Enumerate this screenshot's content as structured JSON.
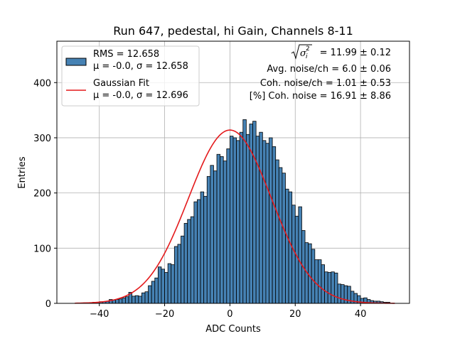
{
  "chart_data": {
    "type": "histogram",
    "title": "Run 647, pedestal, hi Gain, Channels 8-11",
    "xlabel": "ADC Counts",
    "ylabel": "Entries",
    "xlim": [
      -53,
      55
    ],
    "ylim": [
      0,
      475
    ],
    "x_ticks": [
      -40,
      -20,
      0,
      20,
      40
    ],
    "x_tick_labels": [
      "−40",
      "−20",
      "0",
      "20",
      "40"
    ],
    "y_ticks": [
      0,
      100,
      200,
      300,
      400
    ],
    "y_tick_labels": [
      "0",
      "100",
      "200",
      "300",
      "400"
    ],
    "grid": true,
    "bar_color": "#4682b4",
    "bar_edge_color": "#000000",
    "fit_color": "#e41a1c",
    "bins": {
      "start": -45,
      "width": 1,
      "counts": [
        1,
        1,
        1,
        2,
        2,
        3,
        3,
        4,
        7,
        6,
        7,
        8,
        10,
        12,
        20,
        13,
        14,
        13,
        19,
        21,
        32,
        40,
        46,
        66,
        62,
        56,
        72,
        70,
        103,
        107,
        122,
        145,
        152,
        157,
        184,
        188,
        202,
        194,
        230,
        250,
        240,
        270,
        266,
        258,
        280,
        303,
        300,
        295,
        310,
        333,
        306,
        325,
        330,
        303,
        310,
        295,
        290,
        300,
        284,
        260,
        246,
        236,
        207,
        202,
        178,
        158,
        175,
        132,
        110,
        108,
        98,
        79,
        79,
        70,
        57,
        56,
        57,
        55,
        35,
        34,
        32,
        31,
        22,
        18,
        14,
        9,
        10,
        7,
        5,
        4,
        4,
        3,
        2,
        2
      ]
    },
    "fit": {
      "type": "gaussian",
      "mu": -0.0,
      "sigma": 12.696,
      "amplitude": 314,
      "x_range": [
        -47.5,
        50.5
      ]
    },
    "legend": {
      "position": "top-left",
      "entries": [
        {
          "kind": "patch",
          "line1": "RMS = 12.658",
          "line2": "μ = -0.0, σ = 12.658"
        },
        {
          "kind": "line",
          "line1": "Gaussian Fit",
          "line2": "μ = -0.0, σ = 12.696"
        }
      ]
    },
    "annotations": {
      "sqrt_sigma_value": "= 11.99 ± 0.12",
      "avg_noise": "Avg. noise/ch = 6.0 ± 0.06",
      "coh_noise": "Coh. noise/ch = 1.01 ± 0.53",
      "pct_coh_noise": "[%] Coh. noise = 16.91 ± 8.86"
    }
  }
}
